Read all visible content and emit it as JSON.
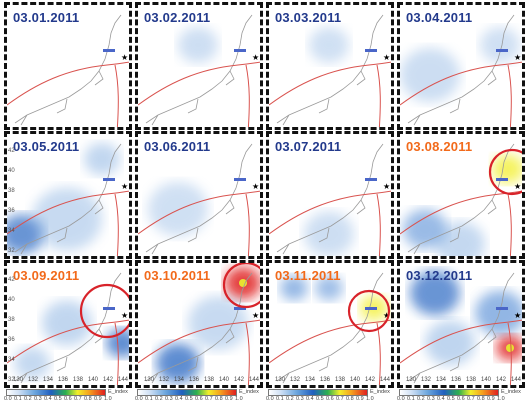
{
  "panels": [
    {
      "date": "03.01.2011",
      "highlight": false,
      "circle": false,
      "blobs": []
    },
    {
      "date": "03.02.2011",
      "highlight": false,
      "circle": false,
      "blobs": []
    },
    {
      "date": "03.03.2011",
      "highlight": false,
      "circle": false,
      "blobs": []
    },
    {
      "date": "03.04.2011",
      "highlight": false,
      "circle": false,
      "blobs": []
    },
    {
      "date": "03.05.2011",
      "highlight": false,
      "circle": false,
      "blobs": []
    },
    {
      "date": "03.06.2011",
      "highlight": false,
      "circle": false,
      "blobs": []
    },
    {
      "date": "03.07.2011",
      "highlight": false,
      "circle": false,
      "blobs": []
    },
    {
      "date": "03.08.2011",
      "highlight": true,
      "circle": true,
      "blobs": []
    },
    {
      "date": "03.09.2011",
      "highlight": true,
      "circle": true,
      "blobs": []
    },
    {
      "date": "03.10.2011",
      "highlight": true,
      "circle": true,
      "blobs": []
    },
    {
      "date": "03.11.2011",
      "highlight": true,
      "circle": true,
      "blobs": []
    },
    {
      "date": "03.12.2011",
      "highlight": false,
      "circle": false,
      "blobs": []
    }
  ],
  "axes": {
    "y_ticks": [
      "42",
      "40",
      "38",
      "36",
      "34",
      "32"
    ],
    "x_ticks": [
      "130",
      "132",
      "134",
      "136",
      "138",
      "140",
      "142",
      "144"
    ]
  },
  "colorbar": {
    "ticks": [
      "0.0",
      "0.1",
      "0.2",
      "0.3",
      "0.4",
      "0.5",
      "0.6",
      "0.7",
      "0.8",
      "0.9",
      "1.0"
    ],
    "label": "E_index"
  },
  "colors": {
    "date_normal": "#233a8c",
    "date_highlight": "#f26a1b",
    "circle": "#d8232a",
    "plate_boundary": "#d9534f",
    "coast": "#9a9a9a"
  }
}
